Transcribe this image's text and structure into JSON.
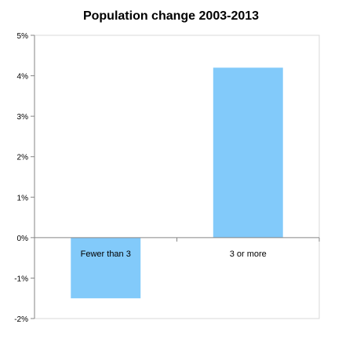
{
  "chart_data": {
    "type": "bar",
    "title": "Population  change  2003-2013",
    "xlabel": "",
    "ylabel": "",
    "categories": [
      "Fewer than 3",
      "3 or more"
    ],
    "values": [
      -1.5,
      4.2
    ],
    "value_unit": "%",
    "ylim": [
      -2,
      5
    ],
    "yticks": [
      5,
      4,
      3,
      2,
      1,
      0,
      -1,
      -2
    ],
    "ytick_labels": [
      "5%",
      "4%",
      "3%",
      "2%",
      "1%",
      "0%",
      "-1%",
      "-2%"
    ],
    "grid": false,
    "legend": "none",
    "colors": {
      "bar": "#82CAFA",
      "axis": "#868686",
      "plot_border": "#D9D9D9"
    }
  }
}
